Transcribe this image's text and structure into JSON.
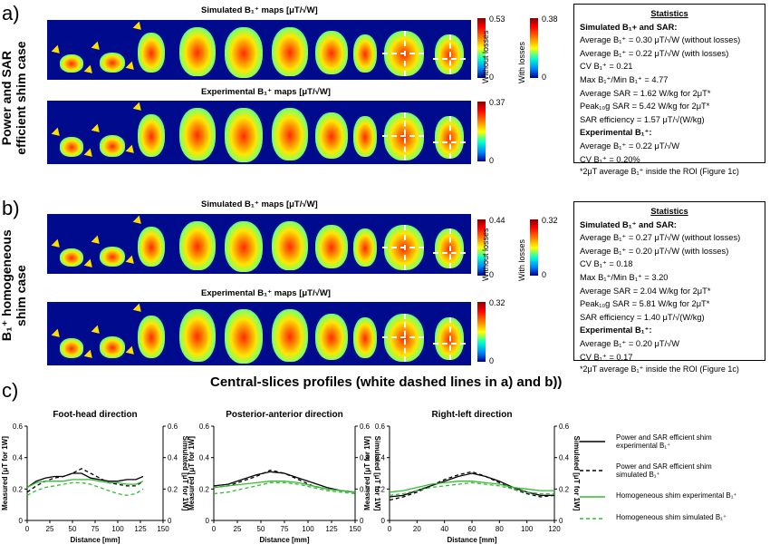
{
  "panel_a": {
    "letter": "a)",
    "side_label": [
      "Power and SAR",
      "efficient shim case"
    ],
    "sim_title": "Simulated B₁⁺ maps [μT/√W]",
    "exp_title": "Experimental B₁⁺ maps [μT/√W]",
    "cb_without": {
      "max": "0.53",
      "min": "0",
      "label": "Without losses"
    },
    "cb_with": {
      "max": "0.38",
      "min": "0",
      "label": "With losses"
    },
    "cb_exp": {
      "max": "0.37",
      "min": "0"
    },
    "stats": {
      "heading": "Statistics",
      "sim_heading": "Simulated B₁+ and SAR:",
      "lines": [
        "Average B₁⁺ = 0.30 μT/√W (without losses)",
        "Average B₁⁺ = 0.22 μT/√W (with losses)",
        "CV B₁⁺ = 0.21",
        "Max B₁⁺/Min B₁⁺ = 4.77",
        "Average SAR = 1.62 W/kg for 2μT*",
        "Peak₁₀g SAR = 5.42 W/kg for 2μT*",
        "SAR efficiency = 1.57 μT/√(W/kg)"
      ],
      "exp_heading": "Experimental B₁⁺:",
      "exp_lines": [
        "Average B₁⁺ = 0.22 μT/√W",
        "CV B₁⁺ = 0.20%"
      ]
    },
    "footnote": "*2μT average B₁⁺ inside the ROI (Figure 1c)"
  },
  "panel_b": {
    "letter": "b)",
    "side_label": [
      "B₁⁺ homogeneous",
      "shim case"
    ],
    "sim_title": "Simulated B₁⁺ maps [μT/√W]",
    "exp_title": "Experimental B₁⁺ maps [μT/√W]",
    "cb_without": {
      "max": "0.44",
      "min": "0",
      "label": "Without losses"
    },
    "cb_with": {
      "max": "0.32",
      "min": "0",
      "label": "With losses"
    },
    "cb_exp": {
      "max": "0.32",
      "min": "0"
    },
    "stats": {
      "heading": "Statistics",
      "sim_heading": "Simulated B₁⁺ and SAR:",
      "lines": [
        "Average B₁⁺ = 0.27 μT/√W (without losses)",
        "Average B₁⁺ = 0.20 μT/√W (with losses)",
        "CV B₁⁺ = 0.18",
        "Max B₁⁺/Min B₁⁺ = 3.20",
        "Average SAR = 2.04 W/kg for 2μT*",
        "Peak₁₀g SAR = 5.81 W/kg for 2μT*",
        "SAR efficiency = 1.40 μT/√(W/kg)"
      ],
      "exp_heading": "Experimental B₁⁺:",
      "exp_lines": [
        "Average B₁⁺ = 0.20 μT/√W",
        "CV B₁⁺ = 0.17"
      ]
    },
    "footnote": "*2μT average B₁⁺ inside the ROI (Figure 1c)"
  },
  "panel_c": {
    "letter": "c)",
    "title": "Central-slices profiles (white dashed lines in a) and b))",
    "legend": [
      {
        "label": "Power and SAR efficient shim experimental B₁⁺",
        "color": "#000000",
        "dash": false
      },
      {
        "label": "Power and SAR efficient shim simulated B₁⁺",
        "color": "#000000",
        "dash": true
      },
      {
        "label": "Homogeneous shim experimental B₁⁺",
        "color": "#33bb33",
        "dash": false
      },
      {
        "label": "Homogeneous shim simulated B₁⁺",
        "color": "#33bb33",
        "dash": true
      }
    ]
  },
  "colors": {
    "map_bg": "#000a8c",
    "arrow": "#ffdd00",
    "sim_green": "#33bb33"
  },
  "chart_data": [
    {
      "type": "line",
      "title": "Foot-head direction",
      "xlabel": "Distance [mm]",
      "ylabel": "Measured [μT for 1W]",
      "y2label": "Simulated [μT for 1W]",
      "xlim": [
        0,
        150
      ],
      "ylim": [
        0,
        0.6
      ],
      "xticks": [
        "0",
        "25",
        "50",
        "75",
        "100",
        "125",
        "150"
      ],
      "yticks": [
        "0",
        "0.2",
        "0.4",
        "0.6"
      ],
      "x": [
        0,
        10,
        20,
        30,
        40,
        50,
        60,
        70,
        80,
        90,
        100,
        110,
        120,
        128
      ],
      "series": [
        {
          "values": [
            0.21,
            0.25,
            0.27,
            0.28,
            0.28,
            0.3,
            0.3,
            0.27,
            0.26,
            0.25,
            0.25,
            0.26,
            0.26,
            0.28
          ]
        },
        {
          "values": [
            0.18,
            0.22,
            0.25,
            0.27,
            0.28,
            0.3,
            0.33,
            0.3,
            0.27,
            0.24,
            0.23,
            0.22,
            0.22,
            0.25
          ]
        },
        {
          "values": [
            0.21,
            0.24,
            0.25,
            0.25,
            0.25,
            0.26,
            0.26,
            0.26,
            0.25,
            0.24,
            0.24,
            0.23,
            0.23,
            0.25
          ]
        },
        {
          "values": [
            0.16,
            0.19,
            0.21,
            0.22,
            0.23,
            0.24,
            0.24,
            0.23,
            0.21,
            0.19,
            0.17,
            0.16,
            0.17,
            0.2
          ]
        }
      ]
    },
    {
      "type": "line",
      "title": "Posterior-anterior direction",
      "xlabel": "Distance [mm]",
      "ylabel": "Measured [μT for 1W]",
      "y2label": "Simulated [μT for 1W]",
      "xlim": [
        0,
        150
      ],
      "ylim": [
        0,
        0.6
      ],
      "xticks": [
        "0",
        "25",
        "50",
        "75",
        "100",
        "125",
        "150"
      ],
      "yticks": [
        "0",
        "0.2",
        "0.4",
        "0.6"
      ],
      "x": [
        0,
        15,
        30,
        45,
        60,
        75,
        90,
        105,
        120,
        135,
        150
      ],
      "series": [
        {
          "values": [
            0.22,
            0.23,
            0.26,
            0.29,
            0.31,
            0.3,
            0.27,
            0.24,
            0.21,
            0.19,
            0.18
          ]
        },
        {
          "values": [
            0.21,
            0.22,
            0.25,
            0.28,
            0.32,
            0.3,
            0.26,
            0.22,
            0.2,
            0.19,
            0.18
          ]
        },
        {
          "values": [
            0.21,
            0.22,
            0.23,
            0.24,
            0.25,
            0.25,
            0.24,
            0.22,
            0.2,
            0.19,
            0.18
          ]
        },
        {
          "values": [
            0.17,
            0.18,
            0.2,
            0.22,
            0.24,
            0.24,
            0.23,
            0.21,
            0.19,
            0.18,
            0.17
          ]
        }
      ]
    },
    {
      "type": "line",
      "title": "Right-left direction",
      "xlabel": "Distance [mm]",
      "ylabel": "Measured [μT for 1W]",
      "y2label": "Simulated [μT for 1W]",
      "xlim": [
        0,
        120
      ],
      "ylim": [
        0,
        0.6
      ],
      "xticks": [
        "0",
        "20",
        "40",
        "60",
        "80",
        "100",
        "120"
      ],
      "yticks": [
        "0",
        "0.2",
        "0.4",
        "0.6"
      ],
      "x": [
        0,
        10,
        20,
        30,
        40,
        50,
        60,
        70,
        80,
        90,
        100,
        110,
        120
      ],
      "series": [
        {
          "values": [
            0.15,
            0.16,
            0.19,
            0.22,
            0.25,
            0.28,
            0.3,
            0.28,
            0.25,
            0.21,
            0.18,
            0.16,
            0.16
          ]
        },
        {
          "values": [
            0.13,
            0.15,
            0.18,
            0.22,
            0.26,
            0.29,
            0.31,
            0.28,
            0.24,
            0.2,
            0.17,
            0.15,
            0.16
          ]
        },
        {
          "values": [
            0.18,
            0.19,
            0.21,
            0.23,
            0.24,
            0.25,
            0.25,
            0.24,
            0.23,
            0.21,
            0.2,
            0.19,
            0.19
          ]
        },
        {
          "values": [
            0.16,
            0.17,
            0.19,
            0.21,
            0.22,
            0.23,
            0.24,
            0.23,
            0.22,
            0.2,
            0.18,
            0.17,
            0.17
          ]
        }
      ]
    }
  ]
}
